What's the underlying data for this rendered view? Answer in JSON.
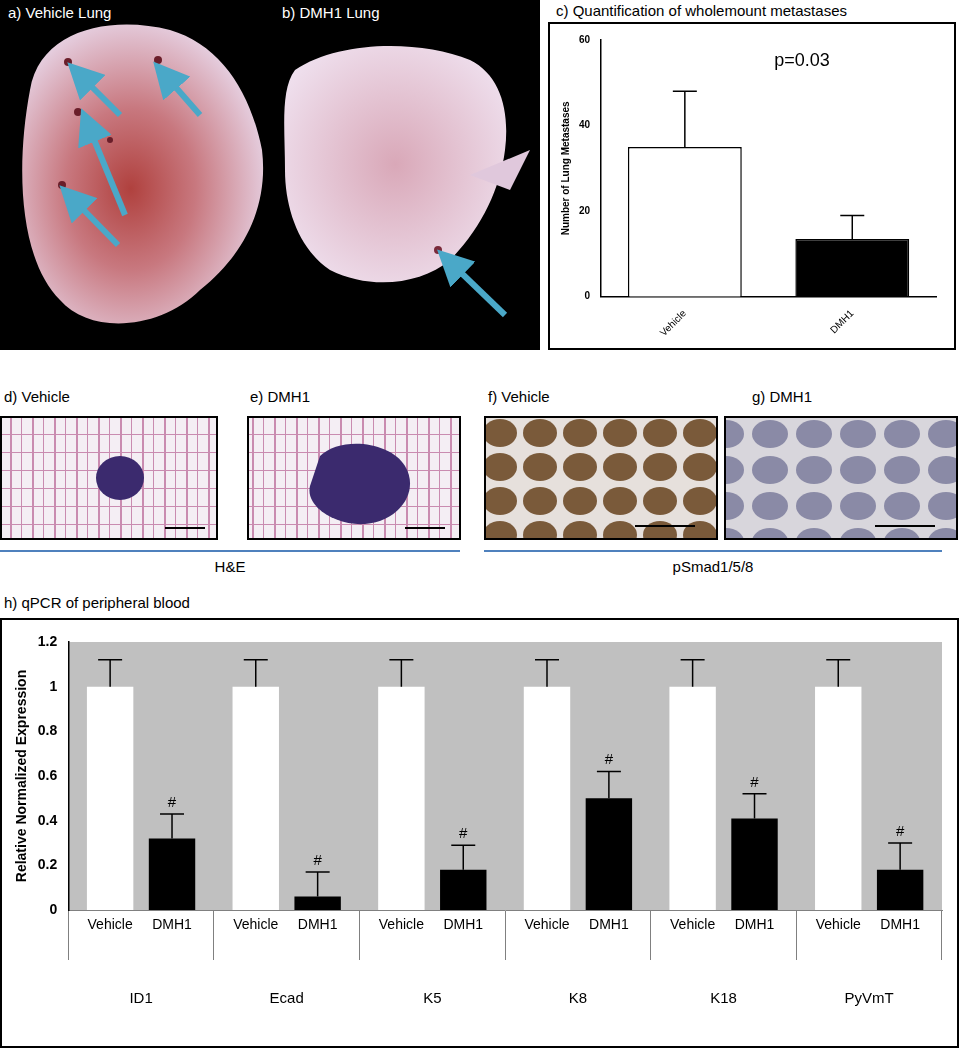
{
  "image_panels": [
    {
      "label": "a) Vehicle Lung"
    },
    {
      "label": "b) DMH1 Lung"
    },
    {
      "label": "d) Vehicle"
    },
    {
      "label": "e) DMH1"
    },
    {
      "label": "f) Vehicle"
    },
    {
      "label": "g) DMH1"
    }
  ],
  "image_groups": [
    {
      "label": "H&E"
    },
    {
      "label": "pSmad1/5/8"
    }
  ],
  "chart_data": [
    {
      "type": "bar",
      "title": "c) Quantification of wholemount metastases",
      "ylabel": "Number of Lung Metastases",
      "annotation": "p=0.03",
      "categories": [
        "Vehicle",
        "DMH1"
      ],
      "values": [
        35,
        13.5
      ],
      "errors": [
        13,
        5.5
      ],
      "colors": [
        "#ffffff",
        "#000000"
      ],
      "ylim": [
        0,
        60
      ],
      "yticks": [
        0,
        20,
        40,
        60
      ],
      "grid": false
    },
    {
      "type": "bar",
      "title": "h) qPCR of peripheral blood",
      "ylabel": "Relative Normalized Expression",
      "categories": [
        "ID1",
        "Ecad",
        "K5",
        "K8",
        "K18",
        "PyVmT"
      ],
      "series": [
        {
          "name": "Vehicle",
          "color": "#ffffff",
          "values": [
            1,
            1,
            1,
            1,
            1,
            1
          ],
          "errors": [
            0.12,
            0.12,
            0.12,
            0.12,
            0.12,
            0.12
          ]
        },
        {
          "name": "DMH1",
          "color": "#000000",
          "values": [
            0.32,
            0.06,
            0.18,
            0.5,
            0.41,
            0.18
          ],
          "errors": [
            0.11,
            0.11,
            0.11,
            0.12,
            0.11,
            0.12
          ],
          "annotation_labels": [
            "#",
            "#",
            "#",
            "#",
            "#",
            "#"
          ]
        }
      ],
      "ylim": [
        0,
        1.2
      ],
      "yticks": [
        0,
        0.2,
        0.4,
        0.6,
        0.8,
        1,
        1.2
      ],
      "grid": false
    }
  ]
}
